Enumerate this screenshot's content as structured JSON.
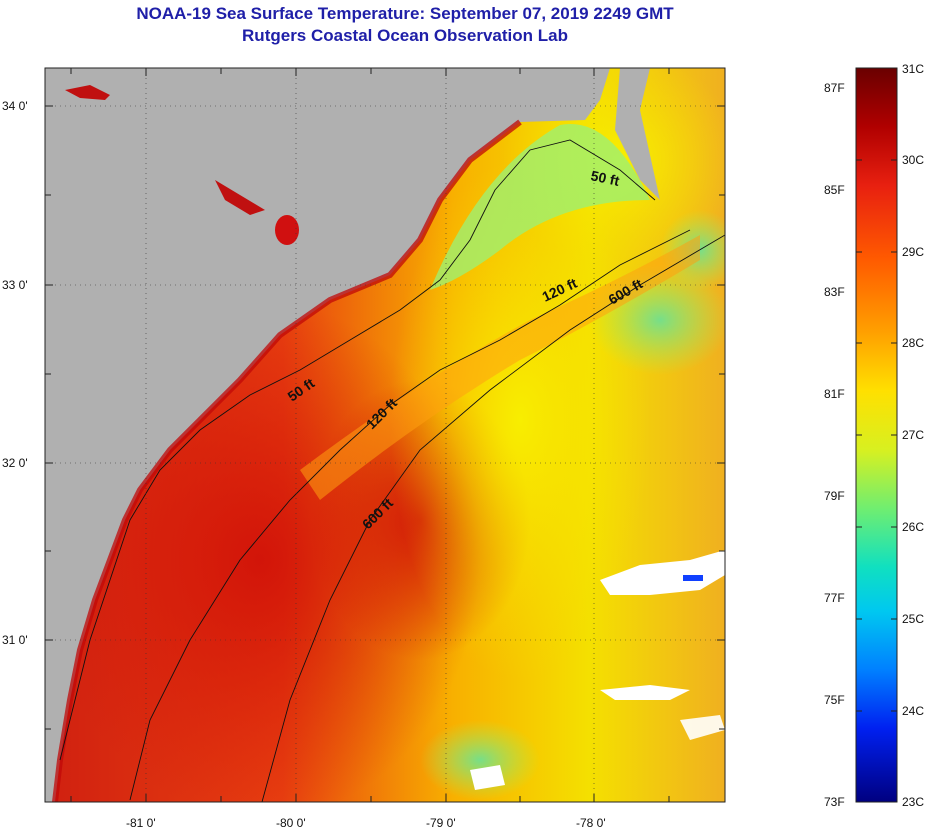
{
  "title": "NOAA-19 Sea Surface Temperature:  September 07, 2019 2249 GMT",
  "subtitle": "Rutgers Coastal Ocean Observation Lab",
  "map": {
    "lon_labels": [
      "-81 0'",
      "-80 0'",
      "-79 0'",
      "-78 0'"
    ],
    "lat_labels": [
      "34 0'",
      "33 0'",
      "32 0'",
      "31 0'"
    ],
    "contour_labels": [
      "50 ft",
      "120 ft",
      "600 ft",
      "50 ft",
      "120 ft",
      "600 ft"
    ],
    "colors": {
      "land": "#b0b0b0",
      "background": "#ffffff"
    }
  },
  "colorbar": {
    "celsius_labels": [
      "31C",
      "30C",
      "29C",
      "28C",
      "27C",
      "26C",
      "25C",
      "24C",
      "23C"
    ],
    "fahrenheit_labels": [
      "87F",
      "85F",
      "83F",
      "81F",
      "79F",
      "77F",
      "75F",
      "73F"
    ],
    "range_c": [
      23,
      31
    ],
    "gradient": [
      "#7a0000",
      "#d01010",
      "#ff3d00",
      "#ff8a00",
      "#ffd000",
      "#f0f000",
      "#90f050",
      "#30e0a0",
      "#00d8e8",
      "#0090ff",
      "#0030ff",
      "#000090"
    ]
  }
}
